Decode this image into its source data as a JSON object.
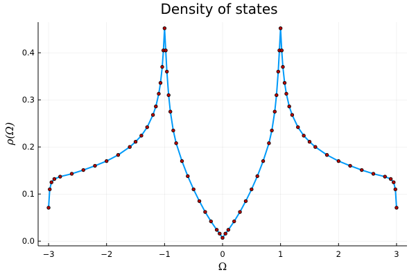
{
  "chart_data": {
    "type": "scatter",
    "title": "Density of states",
    "xlabel": "Ω",
    "ylabel": "ρ(Ω)",
    "xlim": [
      -3.18,
      3.18
    ],
    "ylim": [
      -0.01,
      0.465
    ],
    "xticks": [
      -3,
      -2,
      -1,
      0,
      1,
      2,
      3
    ],
    "xtick_labels": [
      "−3",
      "−2",
      "−1",
      "0",
      "1",
      "2",
      "3"
    ],
    "yticks": [
      0.0,
      0.1,
      0.2,
      0.3,
      0.4
    ],
    "ytick_labels": [
      "0.0",
      "0.1",
      "0.2",
      "0.3",
      "0.4"
    ],
    "grid": true,
    "legend": false,
    "series": [
      {
        "style": "line",
        "color": "#009af9",
        "x": [
          -3.0,
          -2.98,
          -2.95,
          -2.9,
          -2.8,
          -2.6,
          -2.4,
          -2.2,
          -2.0,
          -1.8,
          -1.6,
          -1.5,
          -1.4,
          -1.3,
          -1.2,
          -1.15,
          -1.1,
          -1.07,
          -1.04,
          -1.02,
          -1.0,
          -0.98,
          -0.96,
          -0.93,
          -0.9,
          -0.85,
          -0.8,
          -0.7,
          -0.6,
          -0.5,
          -0.4,
          -0.3,
          -0.2,
          -0.1,
          -0.05,
          0.0,
          0.05,
          0.1,
          0.2,
          0.3,
          0.4,
          0.5,
          0.6,
          0.7,
          0.8,
          0.85,
          0.9,
          0.93,
          0.96,
          0.98,
          1.0,
          1.02,
          1.04,
          1.07,
          1.1,
          1.15,
          1.2,
          1.3,
          1.4,
          1.5,
          1.6,
          1.8,
          2.0,
          2.2,
          2.4,
          2.6,
          2.8,
          2.9,
          2.95,
          2.98,
          3.0
        ],
        "y": [
          0.071,
          0.11,
          0.125,
          0.132,
          0.137,
          0.143,
          0.151,
          0.16,
          0.17,
          0.183,
          0.2,
          0.211,
          0.224,
          0.242,
          0.268,
          0.286,
          0.313,
          0.336,
          0.37,
          0.405,
          0.452,
          0.405,
          0.36,
          0.31,
          0.275,
          0.235,
          0.208,
          0.17,
          0.138,
          0.11,
          0.085,
          0.062,
          0.042,
          0.024,
          0.016,
          0.007,
          0.016,
          0.024,
          0.042,
          0.062,
          0.085,
          0.11,
          0.138,
          0.17,
          0.208,
          0.235,
          0.275,
          0.31,
          0.36,
          0.405,
          0.452,
          0.405,
          0.37,
          0.336,
          0.313,
          0.286,
          0.268,
          0.242,
          0.224,
          0.211,
          0.2,
          0.183,
          0.17,
          0.16,
          0.151,
          0.143,
          0.137,
          0.132,
          0.125,
          0.11,
          0.071
        ]
      },
      {
        "style": "markers",
        "color": "#b20000",
        "x": [
          -3.0,
          -2.98,
          -2.95,
          -2.9,
          -2.8,
          -2.6,
          -2.4,
          -2.2,
          -2.0,
          -1.8,
          -1.6,
          -1.5,
          -1.4,
          -1.3,
          -1.2,
          -1.15,
          -1.1,
          -1.07,
          -1.04,
          -1.02,
          -1.0,
          -0.98,
          -0.96,
          -0.93,
          -0.9,
          -0.85,
          -0.8,
          -0.7,
          -0.6,
          -0.5,
          -0.4,
          -0.3,
          -0.2,
          -0.1,
          -0.05,
          0.0,
          0.05,
          0.1,
          0.2,
          0.3,
          0.4,
          0.5,
          0.6,
          0.7,
          0.8,
          0.85,
          0.9,
          0.93,
          0.96,
          0.98,
          1.0,
          1.02,
          1.04,
          1.07,
          1.1,
          1.15,
          1.2,
          1.3,
          1.4,
          1.5,
          1.6,
          1.8,
          2.0,
          2.2,
          2.4,
          2.6,
          2.8,
          2.9,
          2.95,
          2.98,
          3.0
        ],
        "y": [
          0.071,
          0.11,
          0.125,
          0.132,
          0.137,
          0.143,
          0.151,
          0.16,
          0.17,
          0.183,
          0.2,
          0.211,
          0.224,
          0.242,
          0.268,
          0.286,
          0.313,
          0.336,
          0.37,
          0.405,
          0.452,
          0.405,
          0.36,
          0.31,
          0.275,
          0.235,
          0.208,
          0.17,
          0.138,
          0.11,
          0.085,
          0.062,
          0.042,
          0.024,
          0.016,
          0.007,
          0.016,
          0.024,
          0.042,
          0.062,
          0.085,
          0.11,
          0.138,
          0.17,
          0.208,
          0.235,
          0.275,
          0.31,
          0.36,
          0.405,
          0.452,
          0.405,
          0.37,
          0.336,
          0.313,
          0.286,
          0.268,
          0.242,
          0.224,
          0.211,
          0.2,
          0.183,
          0.17,
          0.16,
          0.151,
          0.143,
          0.137,
          0.132,
          0.125,
          0.11,
          0.071
        ]
      }
    ]
  }
}
